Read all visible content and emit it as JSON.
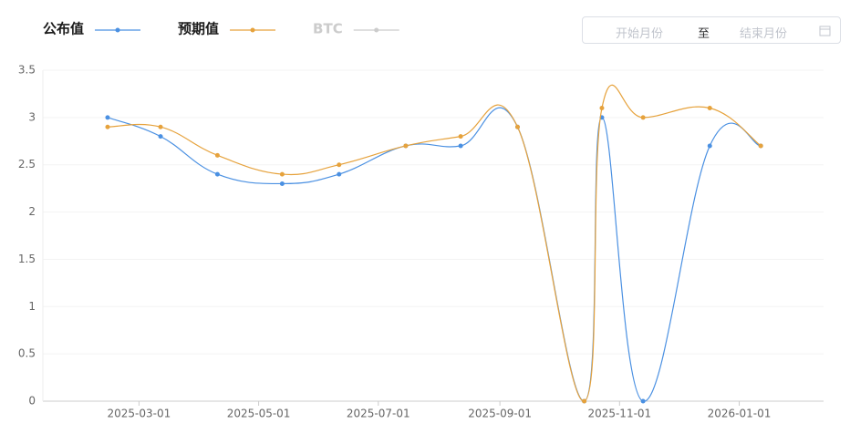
{
  "chart_data": {
    "type": "line",
    "x": [
      "2025-02-13",
      "2025-03-12",
      "2025-04-10",
      "2025-05-13",
      "2025-06-11",
      "2025-07-15",
      "2025-08-12",
      "2025-09-10",
      "2025-10-14",
      "2025-10-23",
      "2025-11-13",
      "2025-12-17",
      "2026-01-12"
    ],
    "series": [
      {
        "name": "公布值",
        "color": "#4a90e2",
        "values": [
          3.0,
          2.8,
          2.4,
          2.3,
          2.4,
          2.7,
          2.7,
          2.9,
          0,
          3.0,
          0,
          2.7,
          2.7
        ]
      },
      {
        "name": "预期值",
        "color": "#e6a23c",
        "values": [
          2.9,
          2.9,
          2.6,
          2.4,
          2.5,
          2.7,
          2.8,
          2.9,
          0,
          3.1,
          3.0,
          3.1,
          2.7
        ]
      },
      {
        "name": "BTC",
        "color": "#cccccc",
        "hidden": true,
        "values": [
          null,
          null,
          null,
          null,
          null,
          null,
          null,
          null,
          null,
          null,
          null,
          null,
          null
        ]
      }
    ],
    "xlim": [
      "2025-01-11",
      "2026-02-13"
    ],
    "xticks": [
      "2025-03-01",
      "2025-05-01",
      "2025-07-01",
      "2025-09-01",
      "2025-11-01",
      "2026-01-01"
    ],
    "ylim": [
      0,
      3.5
    ],
    "yticks": [
      0,
      0.5,
      1,
      1.5,
      2,
      2.5,
      3,
      3.5
    ],
    "grid": true
  },
  "date_picker": {
    "start": "开始月份",
    "separator": "至",
    "end": "结束月份"
  }
}
